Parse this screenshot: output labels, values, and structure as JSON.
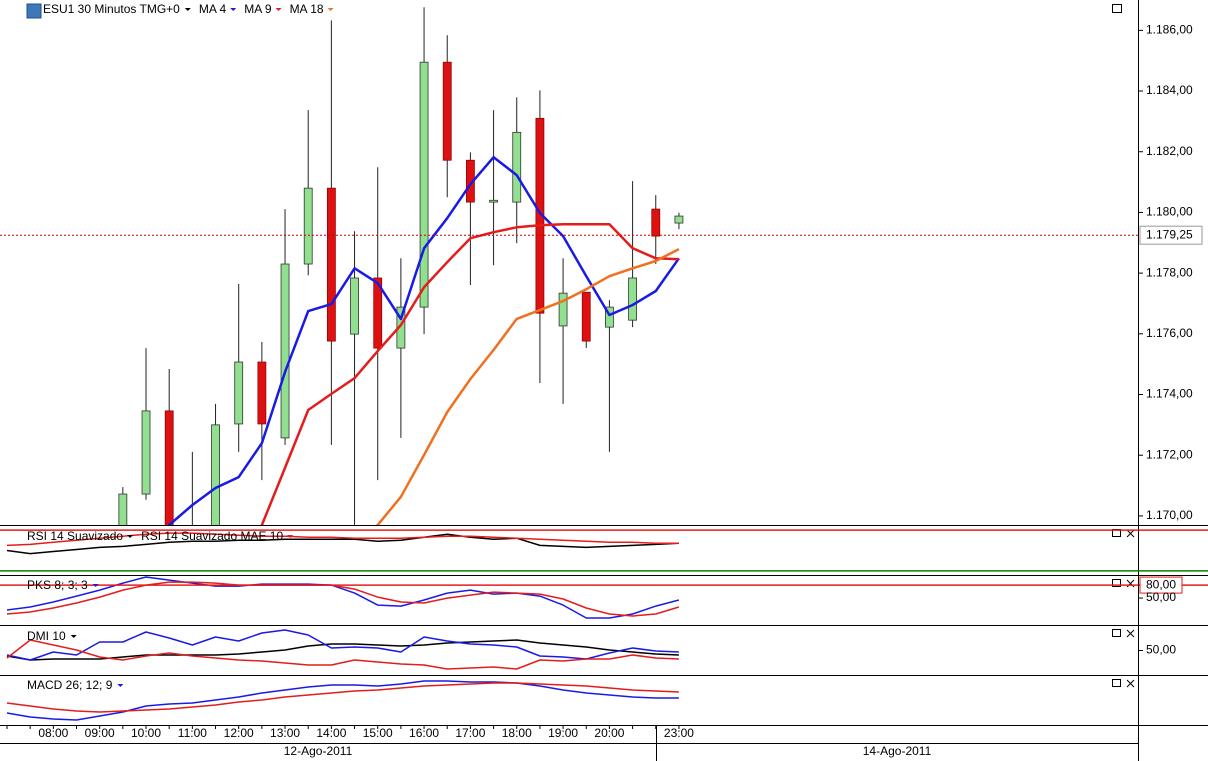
{
  "chart_data": [
    {
      "type": "candlestick",
      "title": "ESU1 30 Minutos TMG+0",
      "title_color": "#000000",
      "categories": [
        null,
        null,
        "08:00",
        null,
        "09:00",
        null,
        "10:00",
        null,
        "11:00",
        null,
        "12:00",
        null,
        "13:00",
        null,
        "14:00",
        null,
        "15:00",
        null,
        "16:00",
        null,
        "17:00",
        null,
        "18:00",
        null,
        "19:00",
        null,
        "20:00",
        null,
        null,
        "23:00"
      ],
      "open": [
        null,
        null,
        null,
        null,
        null,
        1169.4,
        1170.72,
        1173.46,
        1168.5,
        1169.5,
        1173.03,
        1175.07,
        1172.57,
        1178.3,
        1180.8,
        1175.99,
        1177.84,
        1175.53,
        1176.88,
        1184.95,
        1181.72,
        1180.34,
        1180.34,
        1183.1,
        1176.26,
        1177.37,
        1176.22,
        1176.45,
        1180.11,
        1179.65
      ],
      "high": [
        null,
        null,
        null,
        null,
        null,
        1170.95,
        1175.53,
        1174.84,
        1172.11,
        1173.69,
        1177.64,
        1175.73,
        1180.11,
        1183.37,
        1186.33,
        1179.38,
        1181.49,
        1178.49,
        1186.76,
        1185.84,
        1181.98,
        1183.37,
        1183.79,
        1184.02,
        1178.49,
        1177.37,
        1177.11,
        1181.03,
        1180.57,
        1179.99
      ],
      "low": [
        null,
        null,
        null,
        null,
        null,
        1169.0,
        1170.53,
        1169.2,
        1168.0,
        1169.0,
        1172.11,
        1171.18,
        1172.34,
        1177.93,
        1172.34,
        1169.5,
        1171.18,
        1172.57,
        1175.99,
        1180.5,
        1177.61,
        1178.26,
        1178.99,
        1174.38,
        1173.69,
        1175.53,
        1172.11,
        1176.22,
        1178.3,
        1179.45
      ],
      "close": [
        null,
        null,
        null,
        null,
        null,
        1170.72,
        1173.46,
        1169.5,
        1169.5,
        1173.0,
        1175.07,
        1173.03,
        1178.3,
        1180.8,
        1175.76,
        1177.84,
        1175.53,
        1176.88,
        1184.95,
        1181.72,
        1180.34,
        1180.4,
        1182.64,
        1176.68,
        1177.34,
        1175.76,
        1176.88,
        1177.84,
        1179.22,
        1179.88
      ],
      "up_color": "#90e090",
      "down_color": "#dd1111",
      "series": [
        {
          "name": "MA 4",
          "color": "#1a1ae6",
          "values": [
            null,
            null,
            null,
            null,
            null,
            null,
            1169.0,
            1169.7,
            1170.36,
            1170.92,
            1171.28,
            1172.4,
            1174.74,
            1176.75,
            1176.98,
            1178.16,
            1177.67,
            1176.49,
            1178.82,
            1179.81,
            1180.93,
            1181.82,
            1181.23,
            1179.98,
            1179.22,
            1177.9,
            1176.62,
            1176.95,
            1177.41,
            1178.49
          ]
        },
        {
          "name": "MA 9",
          "color": "#e51c1c",
          "values": [
            null,
            null,
            null,
            null,
            null,
            null,
            null,
            null,
            null,
            null,
            1168.8,
            1169.7,
            1171.58,
            1173.49,
            1174.02,
            1174.54,
            1175.43,
            1176.29,
            1177.54,
            1178.36,
            1179.15,
            1179.35,
            1179.51,
            1179.58,
            1179.61,
            1179.61,
            1179.61,
            1178.82,
            1178.49,
            1178.46
          ]
        },
        {
          "name": "MA 18",
          "color": "#f07020",
          "values": [
            null,
            null,
            null,
            null,
            null,
            null,
            null,
            null,
            null,
            null,
            null,
            null,
            null,
            null,
            null,
            1168.9,
            1169.7,
            1170.63,
            1172.01,
            1173.42,
            1174.51,
            1175.47,
            1176.49,
            1176.78,
            1177.08,
            1177.47,
            1177.9,
            1178.16,
            1178.4,
            1178.79
          ]
        }
      ],
      "ylim": [
        1169.7,
        1187.0
      ],
      "yticks": [
        {
          "value": 1170,
          "label": "1.170,00"
        },
        {
          "value": 1172,
          "label": "1.172,00"
        },
        {
          "value": 1174,
          "label": "1.174,00"
        },
        {
          "value": 1176,
          "label": "1.176,00"
        },
        {
          "value": 1178,
          "label": "1.178,00"
        },
        {
          "value": 1180,
          "label": "1.180,00"
        },
        {
          "value": 1182,
          "label": "1.182,00"
        },
        {
          "value": 1184,
          "label": "1.184,00"
        },
        {
          "value": 1186,
          "label": "1.186,00"
        }
      ],
      "last_price": {
        "value": 1179.25,
        "label": "1.179,25"
      },
      "last_price_color": "#cc0000",
      "date_labels": [
        "12-Ago-2011",
        "14-Ago-2011"
      ]
    },
    {
      "type": "line",
      "title_color": "#000000",
      "series": [
        {
          "name": "RSI 14 Suavizado",
          "color": "#000000",
          "values": [
            50,
            47,
            49,
            51,
            53,
            54,
            56,
            58,
            59,
            59,
            60,
            60,
            61,
            61,
            61,
            61,
            59,
            60,
            63,
            66,
            63,
            61,
            62,
            55,
            54,
            53,
            54,
            55,
            56,
            57
          ]
        },
        {
          "name": "RSI 14 Suavizado MAE 10",
          "color": "#e51c1c",
          "values": [
            55,
            56,
            58,
            60,
            62,
            64,
            66,
            67,
            67,
            66,
            65,
            64,
            64,
            63,
            63,
            62,
            62,
            62,
            63,
            64,
            64,
            63,
            62,
            61,
            60,
            59,
            58,
            58,
            57,
            57
          ]
        }
      ],
      "ylim": [
        27,
        73
      ],
      "levels": [
        {
          "value": 70,
          "color": "#e51c1c"
        },
        {
          "value": 30,
          "color": "#008000"
        }
      ]
    },
    {
      "type": "line",
      "title": "PKS 8; 3; 3",
      "title_color": "#1a1ae6",
      "series": [
        {
          "color": "#1a1ae6",
          "values": [
            22.3,
            29.2,
            40.8,
            54.6,
            68.5,
            84.6,
            98.8,
            91.5,
            84.6,
            77.7,
            77.7,
            82.3,
            82.3,
            82.3,
            80,
            61.5,
            33.8,
            31.5,
            45.4,
            61.5,
            68.5,
            59.2,
            61.5,
            54.6,
            33.8,
            3.8,
            3.8,
            13.1,
            31.5,
            45.4
          ]
        },
        {
          "color": "#e51c1c",
          "values": [
            13.1,
            17.7,
            26.9,
            38.5,
            52.3,
            68.5,
            80,
            86.9,
            86.9,
            84.6,
            80,
            80,
            80,
            80,
            80,
            70.8,
            52.3,
            40.8,
            38.5,
            50,
            56.9,
            63.8,
            61.5,
            59.2,
            47.7,
            26.9,
            13.1,
            8.5,
            13.1,
            29.2
          ]
        }
      ],
      "ylim": [
        -10,
        101
      ],
      "yticks": [
        {
          "value": 80,
          "label": "80,00"
        },
        {
          "value": 50,
          "label": "50,00"
        }
      ],
      "levels": [
        {
          "value": 80,
          "color": "#e51c1c"
        }
      ]
    },
    {
      "type": "line",
      "title": "DMI 10",
      "title_color": "#000000",
      "series": [
        {
          "color": "#000000",
          "values": [
            38.3,
            29.8,
            31.9,
            31.9,
            31.9,
            36.2,
            40.4,
            40.4,
            40.4,
            40.4,
            42.6,
            46.8,
            51.1,
            59.6,
            63.8,
            63.8,
            61.7,
            59.6,
            61.7,
            66.0,
            68.1,
            70.2,
            72.3,
            66.0,
            61.7,
            57.4,
            51.1,
            46.8,
            42.6,
            40.4
          ]
        },
        {
          "color": "#1a1ae6",
          "values": [
            40.4,
            29.8,
            46.8,
            40.4,
            68.1,
            68.1,
            89.4,
            76.6,
            61.7,
            78.7,
            70.2,
            87.2,
            93.6,
            83.0,
            55.3,
            57.4,
            55.3,
            46.8,
            78.7,
            70.2,
            63.8,
            61.7,
            57.4,
            38.3,
            36.2,
            31.9,
            44.7,
            55.3,
            48.9,
            46.8
          ]
        },
        {
          "color": "#e51c1c",
          "values": [
            34.0,
            72.3,
            61.7,
            51.1,
            36.2,
            29.8,
            38.3,
            44.7,
            38.3,
            34.0,
            29.8,
            27.7,
            23.4,
            19.1,
            19.1,
            29.8,
            25.5,
            21.3,
            19.1,
            10.6,
            12.8,
            14.9,
            10.6,
            29.8,
            27.7,
            31.9,
            31.9,
            40.4,
            34.0,
            31.9
          ]
        }
      ],
      "ylim": [
        0,
        100
      ],
      "yticks": [
        {
          "value": 50,
          "label": "50,00"
        }
      ]
    },
    {
      "type": "line",
      "title": "MACD 26; 12; 9",
      "title_color": "#1a1ae6",
      "series": [
        {
          "color": "#1a1ae6",
          "values": [
            22.9,
            14.6,
            10.4,
            8.3,
            16.7,
            25,
            37.5,
            41.7,
            43.8,
            50,
            56.3,
            64.6,
            70.8,
            77.1,
            81.3,
            81.3,
            79.2,
            83.3,
            89.6,
            89.6,
            87.5,
            87.5,
            85.4,
            79.2,
            70.8,
            64.6,
            60.4,
            56.3,
            54.2,
            54.2
          ]
        },
        {
          "color": "#e51c1c",
          "values": [
            43.8,
            37.5,
            31.3,
            27.1,
            25,
            27.1,
            29.2,
            31.3,
            35.4,
            39.6,
            45.8,
            50,
            56.3,
            60.4,
            64.6,
            68.8,
            70.8,
            75,
            79.2,
            81.3,
            83.3,
            85.4,
            85.4,
            83.3,
            81.3,
            79.2,
            75,
            70.8,
            68.8,
            66.7
          ]
        }
      ],
      "ylim": [
        0,
        100
      ]
    }
  ]
}
